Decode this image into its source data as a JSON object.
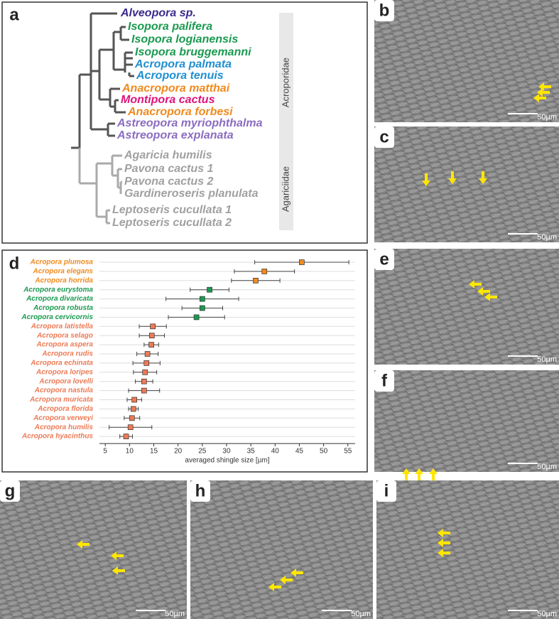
{
  "panels": [
    "a",
    "b",
    "c",
    "d",
    "e",
    "f",
    "g",
    "h",
    "i"
  ],
  "tree": {
    "taxa": [
      {
        "label": "Alveopora sp.",
        "color": "#3b2a8c"
      },
      {
        "label": "Isopora palifera",
        "color": "#1a9a50"
      },
      {
        "label": "Isopora logianensis",
        "color": "#1a9a50"
      },
      {
        "label": "Isopora bruggemanni",
        "color": "#1a9a50"
      },
      {
        "label": "Acropora palmata",
        "color": "#1e8fd0"
      },
      {
        "label": "Acropora tenuis",
        "color": "#1e8fd0"
      },
      {
        "label": "Anacropora matthai",
        "color": "#f08a1e"
      },
      {
        "label": "Montipora cactus",
        "color": "#e0127a"
      },
      {
        "label": "Anacropora forbesi",
        "color": "#f08a1e"
      },
      {
        "label": "Astreopora myriophthalma",
        "color": "#8a6cc0"
      },
      {
        "label": "Astreopora explanata",
        "color": "#8a6cc0"
      },
      {
        "label": "Agaricia humilis",
        "color": "#a0a0a0"
      },
      {
        "label": "Pavona cactus 1",
        "color": "#a0a0a0"
      },
      {
        "label": "Pavona cactus 2",
        "color": "#a0a0a0"
      },
      {
        "label": "Gardineroseris planulata",
        "color": "#a0a0a0"
      },
      {
        "label": "Leptoseris cucullata 1",
        "color": "#a0a0a0"
      },
      {
        "label": "Leptoseris cucullata 2",
        "color": "#a0a0a0"
      }
    ],
    "families": [
      "Acroporidae",
      "Agariciidae"
    ]
  },
  "chart_data": {
    "type": "errorbar",
    "x_label": "averaged shingle size [µm]",
    "categories": [
      "Acropora plumosa",
      "Acropora elegans",
      "Acropora horrida",
      "Acropora eurystoma",
      "Acropora divaricata",
      "Acropora robusta",
      "Acropora cervicornis",
      "Acropora latistella",
      "Acropora selago",
      "Acropora aspera",
      "Acropora rudis",
      "Acropora echinata",
      "Acropora loripes",
      "Acropora lovelli",
      "Acropora nastula",
      "Acropora muricata",
      "Acropora florida",
      "Acropora verweyi",
      "Acropora humilis",
      "Acropora hyacinthus"
    ],
    "values": [
      45.5,
      37.8,
      36,
      26.5,
      25,
      25,
      23.8,
      14.8,
      14.6,
      14.5,
      13.7,
      13.5,
      13.2,
      13,
      13,
      11,
      10.8,
      10.5,
      10.2,
      9.3
    ],
    "errors": [
      9.7,
      6.2,
      5,
      4,
      7.5,
      4.2,
      5.8,
      2.8,
      2.6,
      1.5,
      2.2,
      2.8,
      2.4,
      1.8,
      3.2,
      1.5,
      1,
      1.6,
      4.4,
      1.3
    ],
    "colors": [
      "#f08a1e",
      "#f08a1e",
      "#f08a1e",
      "#1a9a50",
      "#1a9a50",
      "#1a9a50",
      "#1a9a50",
      "#ec7a55",
      "#ec7a55",
      "#ec7a55",
      "#ec7a55",
      "#ec7a55",
      "#ec7a55",
      "#ec7a55",
      "#ec7a55",
      "#ec7a55",
      "#ec7a55",
      "#ec7a55",
      "#ec7a55",
      "#ec7a55"
    ],
    "xlim": [
      3.8,
      56.5
    ],
    "xticks": [
      5,
      10,
      15,
      20,
      25,
      30,
      35,
      40,
      45,
      50,
      55
    ],
    "grid": true
  },
  "images": [
    {
      "scale_bar": "50µm"
    },
    {
      "scale_bar": "50µm"
    },
    {
      "scale_bar": "50µm"
    },
    {
      "scale_bar": "50µm"
    },
    {
      "scale_bar": "50µm"
    },
    {
      "scale_bar": "50µm"
    },
    {
      "scale_bar": "50µm"
    }
  ]
}
